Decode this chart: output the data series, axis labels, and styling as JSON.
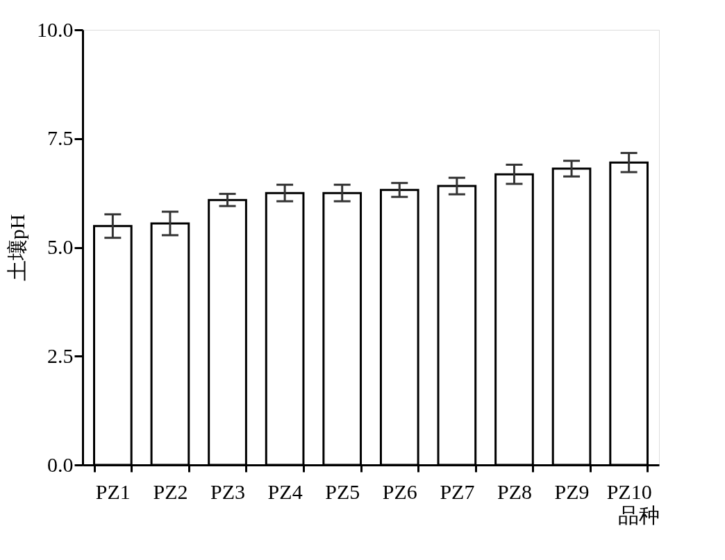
{
  "chart_data": {
    "type": "bar",
    "xlabel": "品种",
    "ylabel": "土壤pH",
    "categories": [
      "PZ1",
      "PZ2",
      "PZ3",
      "PZ4",
      "PZ5",
      "PZ6",
      "PZ7",
      "PZ8",
      "PZ9",
      "PZ10"
    ],
    "series": [
      {
        "color": "#ffffff",
        "values": [
          5.49,
          5.55,
          6.09,
          6.25,
          6.25,
          6.32,
          6.41,
          6.68,
          6.81,
          6.95
        ],
        "errors": [
          0.27,
          0.27,
          0.14,
          0.19,
          0.19,
          0.16,
          0.19,
          0.22,
          0.18,
          0.22
        ]
      }
    ],
    "ylim": [
      0,
      10
    ],
    "yticks": [
      {
        "value": 0,
        "label": "0.0"
      },
      {
        "value": 2.5,
        "label": "2.5"
      },
      {
        "value": 5,
        "label": "5.0"
      },
      {
        "value": 7.5,
        "label": "7.5"
      },
      {
        "value": 10,
        "label": "10.0"
      }
    ],
    "grid": false
  }
}
